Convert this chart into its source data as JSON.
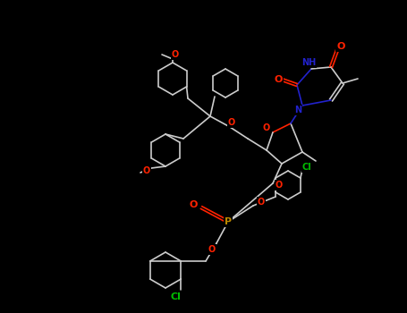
{
  "bg_color": "#000000",
  "bond_color": "#cccccc",
  "atom_colors": {
    "O": "#ff2200",
    "N": "#2222cc",
    "P": "#bb8800",
    "Cl": "#00bb00",
    "C": "#cccccc"
  },
  "figsize": [
    4.55,
    3.5
  ],
  "dpi": 100
}
